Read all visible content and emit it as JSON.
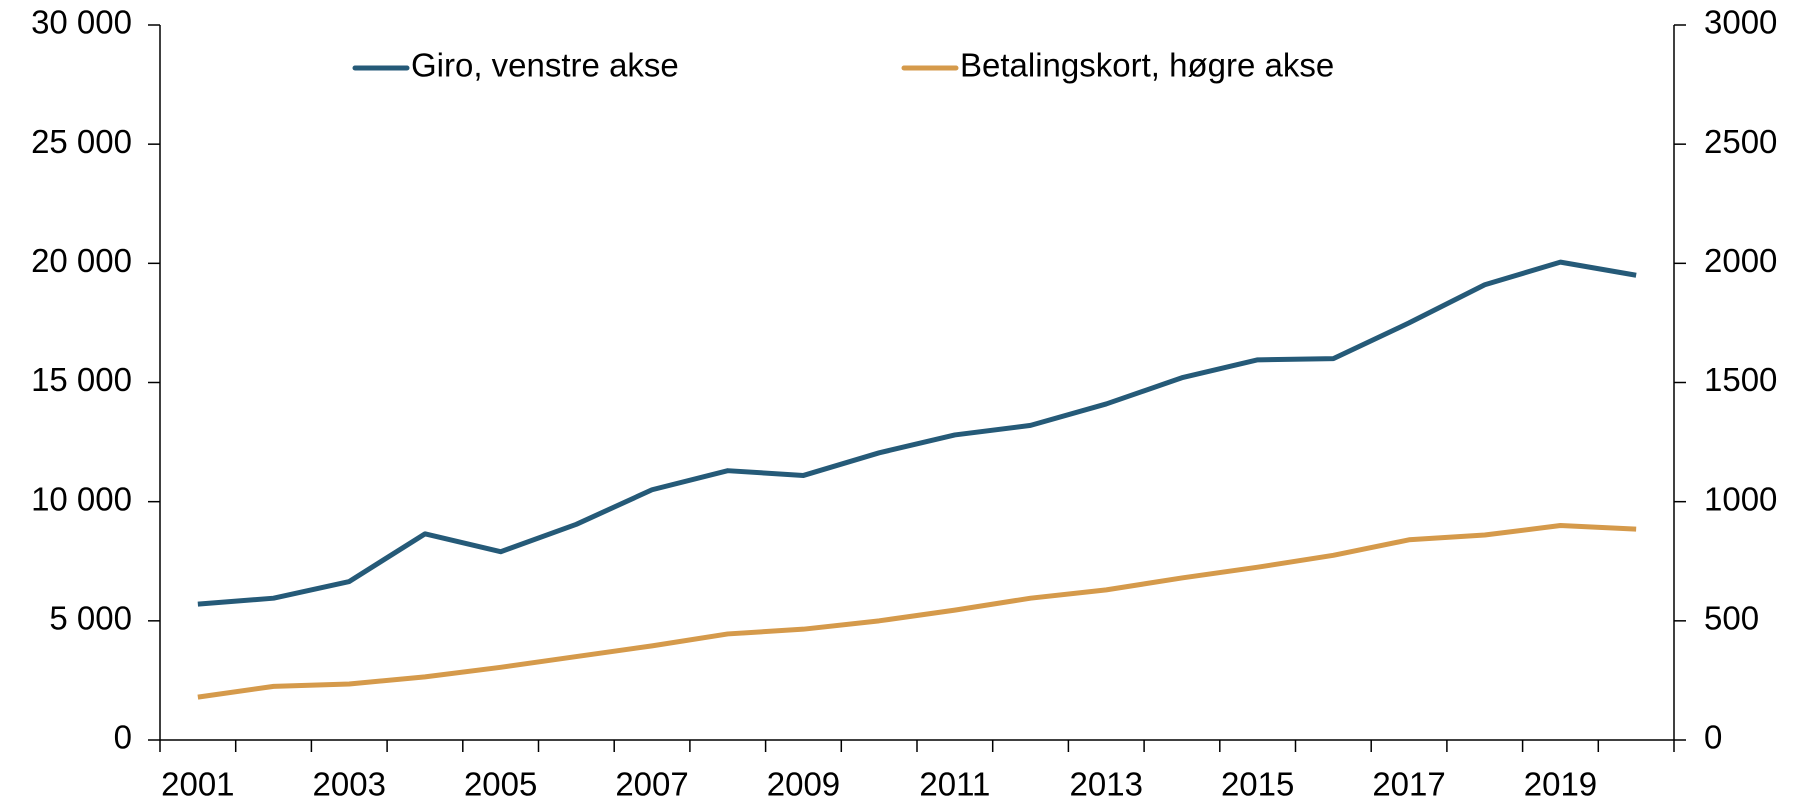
{
  "chart_data": {
    "type": "line",
    "categories": [
      "2001",
      null,
      "2003",
      null,
      "2005",
      null,
      "2007",
      null,
      "2009",
      null,
      "2011",
      null,
      "2013",
      null,
      "2015",
      null,
      "2017",
      null,
      "2019",
      null
    ],
    "series": [
      {
        "name": "Giro, venstre akse",
        "color": "#255a78",
        "values": [
          5700,
          5950,
          6650,
          8650,
          7900,
          9050,
          10500,
          11300,
          11100,
          12050,
          12800,
          13200,
          14100,
          15200,
          15950,
          16000,
          17500,
          19100,
          20050,
          19500
        ]
      },
      {
        "name": "Betalingskort, høgre akse",
        "color": "#d59a4b",
        "axis": "y2",
        "values": [
          180,
          225,
          235,
          265,
          305,
          350,
          395,
          445,
          465,
          500,
          545,
          595,
          630,
          680,
          725,
          775,
          840,
          860,
          900,
          885
        ]
      }
    ],
    "ylim": [
      0,
      30000
    ],
    "yticks": [
      0,
      {
        "value": 5000,
        "label": "5 000"
      },
      {
        "value": 10000,
        "label": "10 000"
      },
      {
        "value": 15000,
        "label": "15 000"
      },
      {
        "value": 20000,
        "label": "20 000"
      },
      {
        "value": 25000,
        "label": "25 000"
      },
      {
        "value": 30000,
        "label": "30 000"
      }
    ],
    "y2lim": [
      0,
      3000
    ],
    "y2ticks": [
      0,
      500,
      1000,
      1500,
      2000,
      2500,
      3000
    ],
    "legend": "top"
  }
}
